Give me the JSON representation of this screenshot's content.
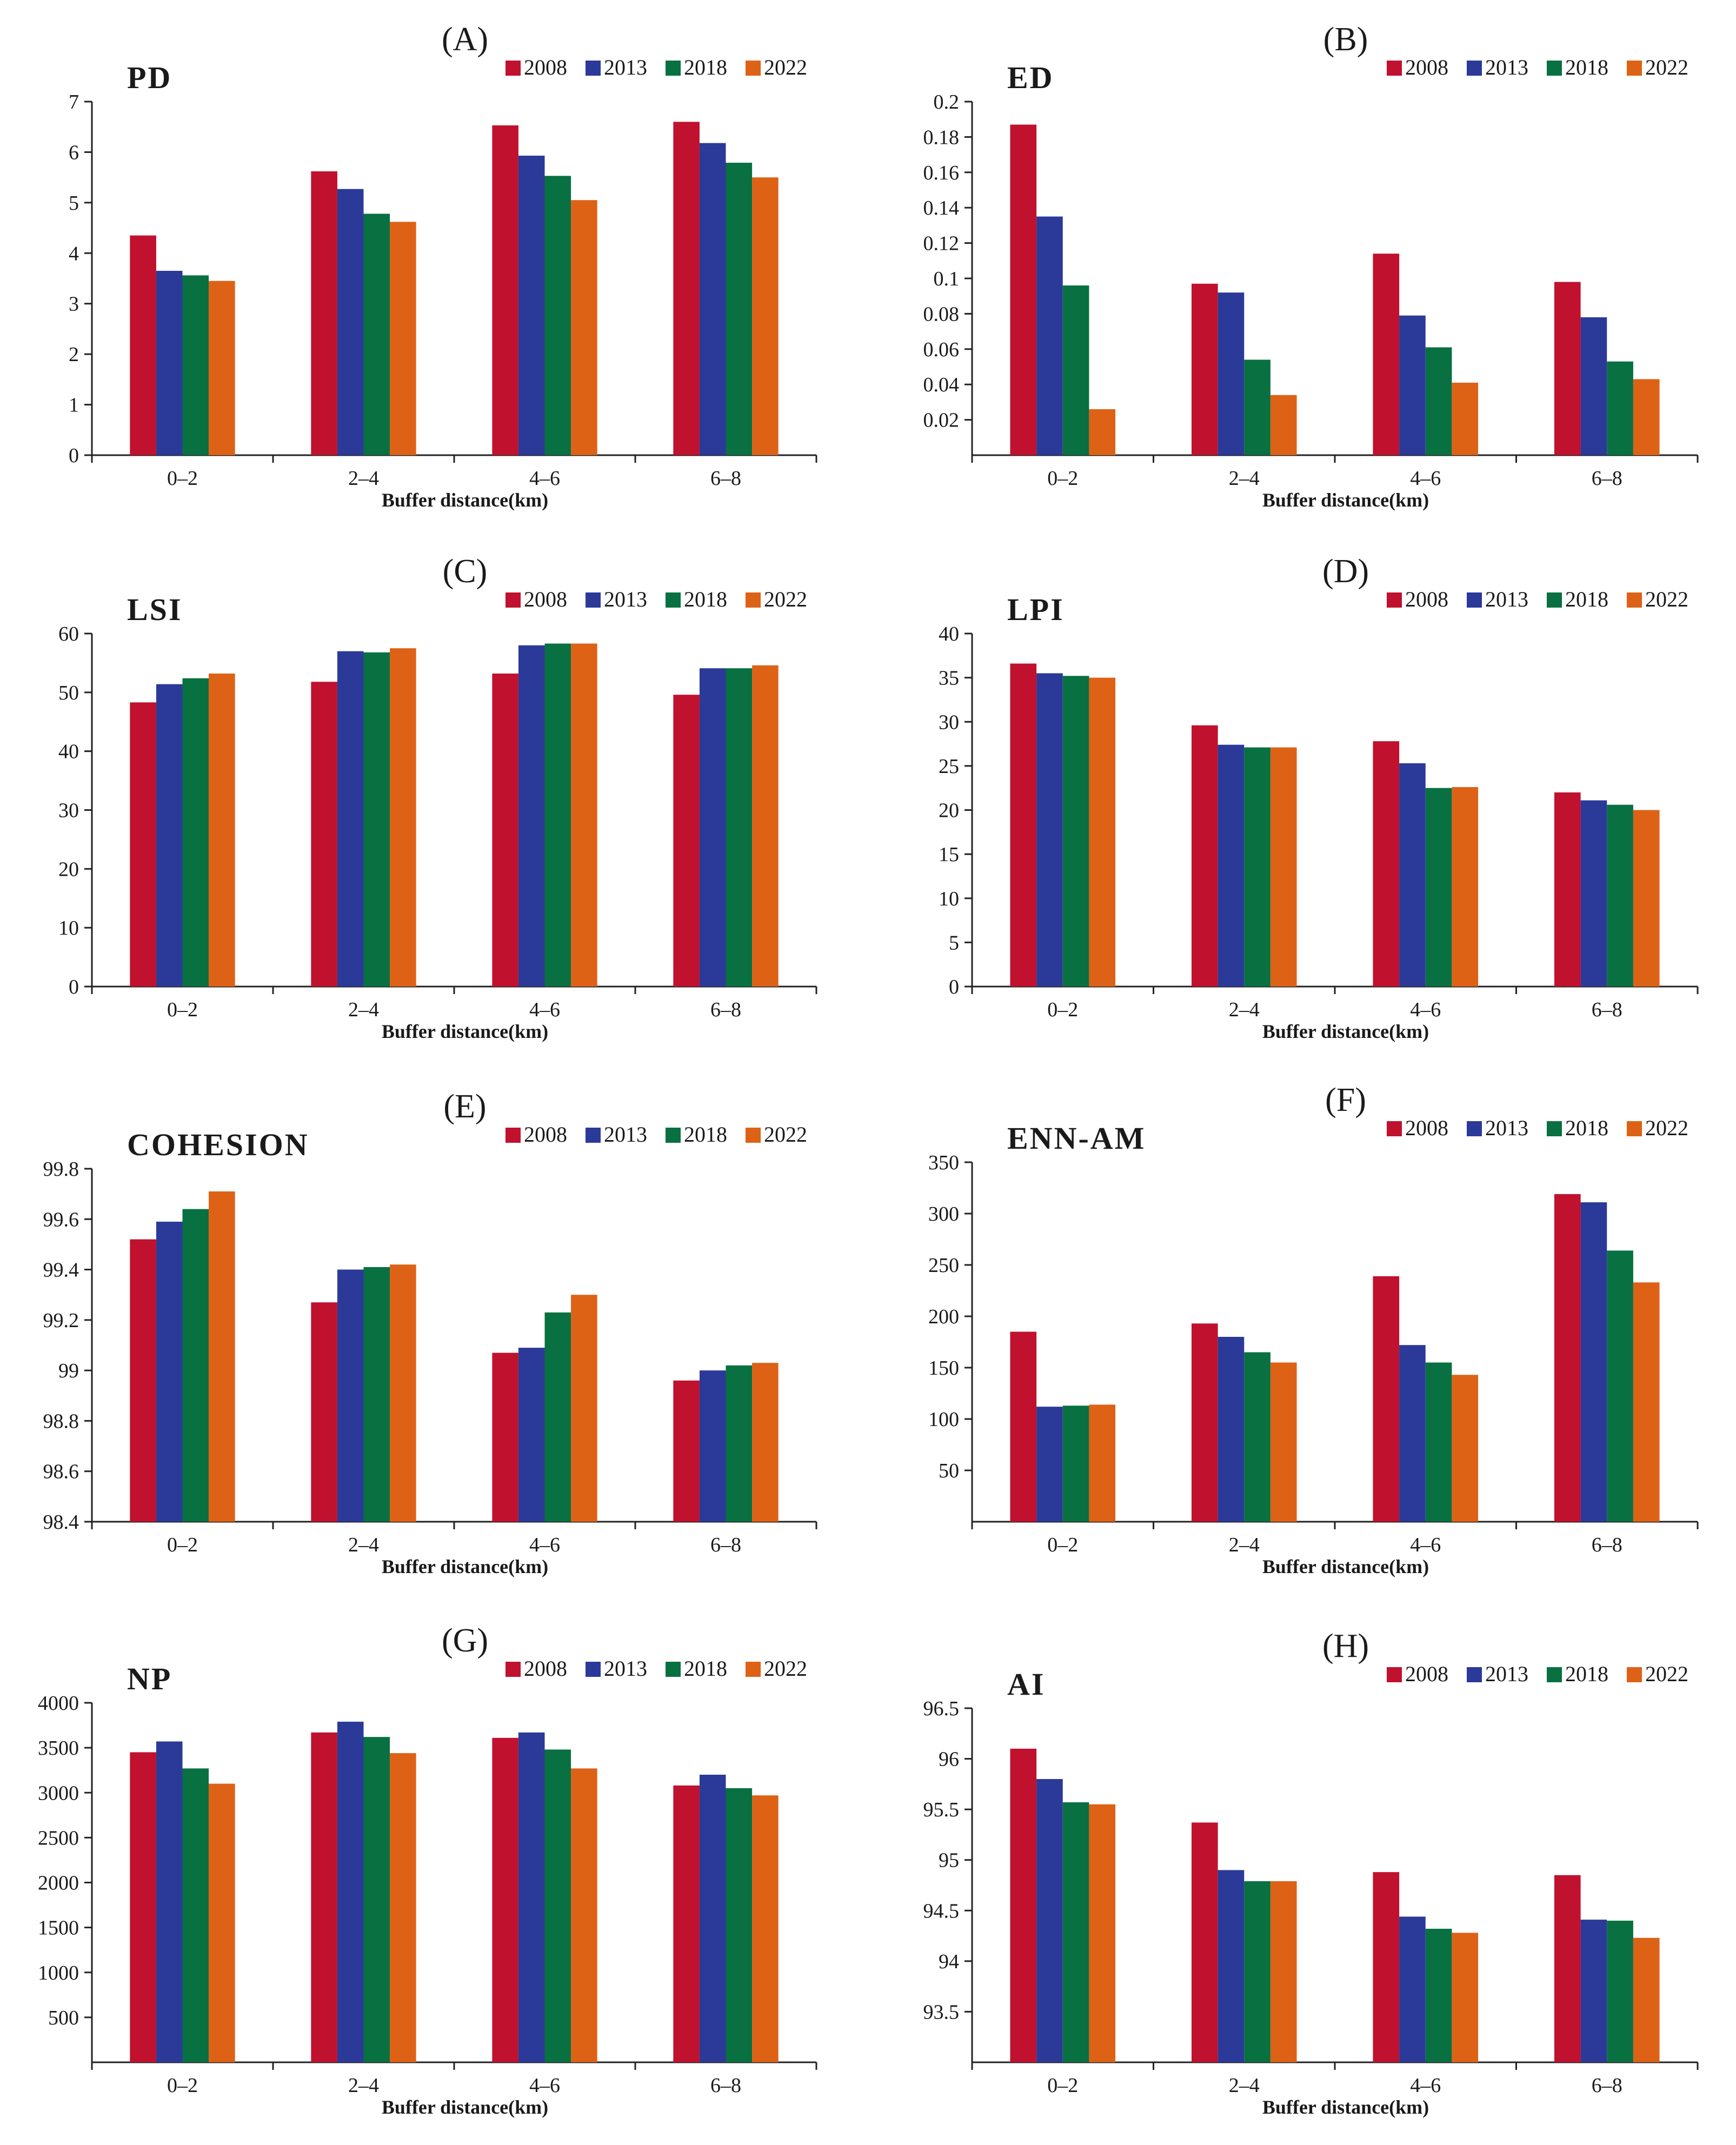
{
  "figure": {
    "colors": {
      "2008": "#C0112E",
      "2013": "#2B3A98",
      "2018": "#087041",
      "2022": "#DD6216"
    }
  },
  "chart_data": [
    {
      "panel": "(A)",
      "type": "bar",
      "metric": "PD",
      "categories": [
        "0–2",
        "2–4",
        "4–6",
        "6–8"
      ],
      "xlabel": "Buffer distance(km)",
      "ylabel": "",
      "ylim": [
        0,
        7
      ],
      "yticks": [
        0,
        1,
        2,
        3,
        4,
        5,
        6,
        7
      ],
      "ytick_labels": [
        "0",
        "1",
        "2",
        "3",
        "4",
        "5",
        "6",
        "7"
      ],
      "legend_position": "top-right",
      "grid": false,
      "series": [
        {
          "name": "2008",
          "values": [
            4.35,
            5.62,
            6.53,
            6.6
          ]
        },
        {
          "name": "2013",
          "values": [
            3.65,
            5.27,
            5.93,
            6.18
          ]
        },
        {
          "name": "2018",
          "values": [
            3.56,
            4.78,
            5.53,
            5.79
          ]
        },
        {
          "name": "2022",
          "values": [
            3.45,
            4.62,
            5.05,
            5.5
          ]
        }
      ]
    },
    {
      "panel": "(B)",
      "type": "bar",
      "metric": "ED",
      "categories": [
        "0–2",
        "2–4",
        "4–6",
        "6–8"
      ],
      "xlabel": "Buffer distance(km)",
      "ylabel": "",
      "ylim": [
        0,
        0.2
      ],
      "yticks": [
        0.02,
        0.04,
        0.06,
        0.08,
        0.1,
        0.12,
        0.14,
        0.16,
        0.18,
        0.2
      ],
      "ytick_labels": [
        "0.02",
        "0.04",
        "0.06",
        "0.08",
        "0.1",
        "0.12",
        "0.14",
        "0.16",
        "0.18",
        "0.2"
      ],
      "legend_position": "top-right",
      "grid": false,
      "series": [
        {
          "name": "2008",
          "values": [
            0.187,
            0.097,
            0.114,
            0.098
          ]
        },
        {
          "name": "2013",
          "values": [
            0.135,
            0.092,
            0.079,
            0.078
          ]
        },
        {
          "name": "2018",
          "values": [
            0.096,
            0.054,
            0.061,
            0.053
          ]
        },
        {
          "name": "2022",
          "values": [
            0.026,
            0.034,
            0.041,
            0.043
          ]
        }
      ]
    },
    {
      "panel": "(C)",
      "type": "bar",
      "metric": "LSI",
      "categories": [
        "0–2",
        "2–4",
        "4–6",
        "6–8"
      ],
      "xlabel": "Buffer distance(km)",
      "ylabel": "",
      "ylim": [
        0,
        60
      ],
      "yticks": [
        0,
        10,
        20,
        30,
        40,
        50,
        60
      ],
      "ytick_labels": [
        "0",
        "10",
        "20",
        "30",
        "40",
        "50",
        "60"
      ],
      "legend_position": "top-right",
      "grid": false,
      "series": [
        {
          "name": "2008",
          "values": [
            48.3,
            51.8,
            53.2,
            49.6
          ]
        },
        {
          "name": "2013",
          "values": [
            51.4,
            57.0,
            58.0,
            54.1
          ]
        },
        {
          "name": "2018",
          "values": [
            52.4,
            56.8,
            58.3,
            54.1
          ]
        },
        {
          "name": "2022",
          "values": [
            53.2,
            57.5,
            58.3,
            54.6
          ]
        }
      ]
    },
    {
      "panel": "(D)",
      "type": "bar",
      "metric": "LPI",
      "categories": [
        "0–2",
        "2–4",
        "4–6",
        "6–8"
      ],
      "xlabel": "Buffer distance(km)",
      "ylabel": "",
      "ylim": [
        0,
        40
      ],
      "yticks": [
        0,
        5,
        10,
        15,
        20,
        25,
        30,
        35,
        40
      ],
      "ytick_labels": [
        "0",
        "5",
        "10",
        "15",
        "20",
        "25",
        "30",
        "35",
        "40"
      ],
      "legend_position": "top-right",
      "grid": false,
      "series": [
        {
          "name": "2008",
          "values": [
            36.6,
            29.6,
            27.8,
            22.0
          ]
        },
        {
          "name": "2013",
          "values": [
            35.5,
            27.4,
            25.3,
            21.1
          ]
        },
        {
          "name": "2018",
          "values": [
            35.2,
            27.1,
            22.5,
            20.6
          ]
        },
        {
          "name": "2022",
          "values": [
            35.0,
            27.1,
            22.6,
            20.0
          ]
        }
      ]
    },
    {
      "panel": "(E)",
      "type": "bar",
      "metric": "COHESION",
      "categories": [
        "0–2",
        "2–4",
        "4–6",
        "6–8"
      ],
      "xlabel": "Buffer distance(km)",
      "ylabel": "",
      "ylim": [
        98.4,
        99.8
      ],
      "yticks": [
        98.4,
        98.6,
        98.8,
        99.0,
        99.2,
        99.4,
        99.6,
        99.8
      ],
      "ytick_labels": [
        "98.4",
        "98.6",
        "98.8",
        "99",
        "99.2",
        "99.4",
        "99.6",
        "99.8"
      ],
      "legend_position": "top-right",
      "grid": false,
      "series": [
        {
          "name": "2008",
          "values": [
            99.52,
            99.27,
            99.07,
            98.96
          ]
        },
        {
          "name": "2013",
          "values": [
            99.59,
            99.4,
            99.09,
            99.0
          ]
        },
        {
          "name": "2018",
          "values": [
            99.64,
            99.41,
            99.23,
            99.02
          ]
        },
        {
          "name": "2022",
          "values": [
            99.71,
            99.42,
            99.3,
            99.03
          ]
        }
      ]
    },
    {
      "panel": "(F)",
      "type": "bar",
      "metric": "ENN-AM",
      "categories": [
        "0–2",
        "2–4",
        "4–6",
        "6–8"
      ],
      "xlabel": "Buffer distance(km)",
      "ylabel": "",
      "ylim": [
        0,
        350
      ],
      "yticks": [
        50,
        100,
        150,
        200,
        250,
        300,
        350
      ],
      "ytick_labels": [
        "50",
        "100",
        "150",
        "200",
        "250",
        "300",
        "350"
      ],
      "legend_position": "top-right",
      "grid": false,
      "series": [
        {
          "name": "2008",
          "values": [
            185,
            193,
            239,
            319
          ]
        },
        {
          "name": "2013",
          "values": [
            112,
            180,
            172,
            311
          ]
        },
        {
          "name": "2018",
          "values": [
            113,
            165,
            155,
            264
          ]
        },
        {
          "name": "2022",
          "values": [
            114,
            155,
            143,
            233
          ]
        }
      ]
    },
    {
      "panel": "(G)",
      "type": "bar",
      "metric": "NP",
      "categories": [
        "0–2",
        "2–4",
        "4–6",
        "6–8"
      ],
      "xlabel": "Buffer distance(km)",
      "ylabel": "",
      "ylim": [
        0,
        4000
      ],
      "yticks": [
        500,
        1000,
        1500,
        2000,
        2500,
        3000,
        3500,
        4000
      ],
      "ytick_labels": [
        "500",
        "1000",
        "1500",
        "2000",
        "2500",
        "3000",
        "3500",
        "4000"
      ],
      "legend_position": "top-right",
      "grid": false,
      "series": [
        {
          "name": "2008",
          "values": [
            3450,
            3670,
            3610,
            3080
          ]
        },
        {
          "name": "2013",
          "values": [
            3570,
            3790,
            3670,
            3200
          ]
        },
        {
          "name": "2018",
          "values": [
            3270,
            3620,
            3480,
            3050
          ]
        },
        {
          "name": "2022",
          "values": [
            3100,
            3440,
            3270,
            2970
          ]
        }
      ]
    },
    {
      "panel": "(H)",
      "type": "bar",
      "metric": "AI",
      "categories": [
        "0–2",
        "2–4",
        "4–6",
        "6–8"
      ],
      "xlabel": "Buffer distance(km)",
      "ylabel": "",
      "ylim": [
        93.0,
        96.5
      ],
      "yticks": [
        93.5,
        94.0,
        94.5,
        95.0,
        95.5,
        96.0,
        96.5
      ],
      "ytick_labels": [
        "93.5",
        "94",
        "94.5",
        "95",
        "95.5",
        "96",
        "96.5"
      ],
      "legend_position": "top-right",
      "grid": false,
      "series": [
        {
          "name": "2008",
          "values": [
            96.1,
            95.37,
            94.88,
            94.85
          ]
        },
        {
          "name": "2013",
          "values": [
            95.8,
            94.9,
            94.44,
            94.41
          ]
        },
        {
          "name": "2018",
          "values": [
            95.57,
            94.79,
            94.32,
            94.4
          ]
        },
        {
          "name": "2022",
          "values": [
            95.55,
            94.79,
            94.28,
            94.23
          ]
        }
      ]
    }
  ]
}
